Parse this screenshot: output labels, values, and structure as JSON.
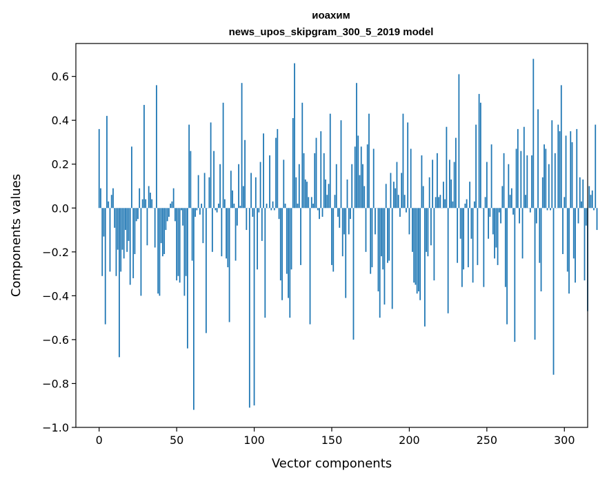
{
  "chart_data": {
    "type": "bar",
    "title": "иоахим",
    "subtitle": "news_upos_skipgram_300_5_2019 model",
    "xlabel": "Vector components",
    "ylabel": "Components values",
    "xlim": [
      -15,
      315
    ],
    "ylim": [
      -1.0,
      0.75
    ],
    "xticks": [
      0,
      50,
      100,
      150,
      200,
      250,
      300
    ],
    "xtick_labels": [
      "0",
      "50",
      "100",
      "150",
      "200",
      "250",
      "300"
    ],
    "yticks": [
      -1.0,
      -0.8,
      -0.6,
      -0.4,
      -0.2,
      0.0,
      0.2,
      0.4,
      0.6
    ],
    "ytick_labels": [
      "−1.0",
      "−0.8",
      "−0.6",
      "−0.4",
      "−0.2",
      "0.0",
      "0.2",
      "0.4",
      "0.6"
    ],
    "grid": false,
    "bar_color": "#1f77b4",
    "values": [
      0.36,
      0.09,
      -0.31,
      -0.13,
      -0.53,
      0.42,
      0.03,
      -0.29,
      0.06,
      0.09,
      -0.09,
      -0.31,
      -0.19,
      -0.68,
      -0.29,
      -0.19,
      -0.23,
      -0.1,
      -0.2,
      -0.15,
      -0.35,
      0.28,
      -0.32,
      -0.21,
      -0.06,
      -0.05,
      0.09,
      -0.4,
      0.04,
      0.47,
      0.04,
      -0.17,
      0.1,
      0.07,
      0.04,
      0.0,
      -0.18,
      0.56,
      -0.39,
      -0.4,
      -0.16,
      -0.22,
      -0.21,
      -0.1,
      -0.06,
      -0.04,
      0.02,
      0.03,
      0.09,
      -0.06,
      -0.33,
      -0.31,
      -0.34,
      -0.01,
      -0.08,
      -0.4,
      -0.31,
      -0.64,
      0.38,
      0.26,
      -0.24,
      -0.92,
      -0.04,
      -0.01,
      0.15,
      -0.03,
      0.02,
      -0.16,
      0.16,
      -0.57,
      0.0,
      0.14,
      0.39,
      -0.2,
      0.26,
      -0.01,
      -0.02,
      0.02,
      0.2,
      -0.22,
      0.48,
      0.04,
      -0.23,
      -0.27,
      -0.52,
      0.17,
      0.08,
      0.02,
      -0.24,
      -0.08,
      0.2,
      0.01,
      0.57,
      0.1,
      0.31,
      -0.1,
      0.0,
      -0.91,
      0.16,
      -0.04,
      -0.9,
      0.14,
      -0.28,
      -0.02,
      0.21,
      -0.15,
      0.34,
      -0.5,
      0.02,
      0.0,
      0.24,
      -0.01,
      0.03,
      -0.01,
      0.32,
      0.36,
      -0.05,
      -0.33,
      -0.42,
      0.22,
      0.02,
      -0.3,
      -0.41,
      -0.5,
      -0.28,
      0.41,
      0.66,
      0.14,
      0.02,
      0.2,
      -0.26,
      0.48,
      0.25,
      0.13,
      0.12,
      0.05,
      -0.53,
      0.05,
      0.02,
      0.25,
      0.32,
      -0.01,
      -0.05,
      0.35,
      -0.04,
      0.25,
      0.13,
      0.06,
      0.11,
      0.43,
      -0.26,
      -0.29,
      0.06,
      0.2,
      -0.04,
      -0.09,
      0.4,
      -0.22,
      -0.12,
      -0.41,
      0.13,
      -0.12,
      -0.05,
      0.2,
      -0.6,
      0.28,
      0.57,
      0.33,
      0.15,
      0.28,
      0.2,
      0.1,
      -0.2,
      0.29,
      0.43,
      -0.3,
      -0.27,
      0.27,
      -0.12,
      0.0,
      -0.38,
      -0.5,
      -0.22,
      -0.28,
      -0.44,
      0.11,
      -0.25,
      -0.24,
      0.16,
      -0.46,
      0.12,
      0.09,
      0.21,
      0.06,
      -0.04,
      0.16,
      0.43,
      0.06,
      -0.02,
      0.39,
      -0.12,
      0.27,
      -0.2,
      -0.34,
      -0.35,
      -0.39,
      -0.38,
      -0.42,
      0.24,
      0.1,
      -0.54,
      -0.2,
      -0.22,
      0.14,
      -0.17,
      0.22,
      -0.33,
      0.05,
      0.25,
      0.05,
      0.06,
      0.0,
      0.12,
      0.04,
      0.37,
      -0.48,
      0.22,
      0.13,
      0.03,
      0.21,
      0.32,
      -0.25,
      0.61,
      -0.14,
      -0.36,
      -0.28,
      0.02,
      0.04,
      -0.27,
      0.12,
      -0.14,
      -0.34,
      0.03,
      0.38,
      -0.26,
      0.52,
      0.48,
      0.0,
      -0.36,
      0.05,
      0.21,
      -0.14,
      -0.04,
      0.29,
      -0.12,
      -0.23,
      -0.18,
      -0.26,
      -0.02,
      -0.07,
      0.1,
      0.25,
      -0.36,
      -0.53,
      0.2,
      0.06,
      0.09,
      -0.03,
      -0.61,
      0.27,
      0.36,
      -0.07,
      0.26,
      -0.23,
      0.37,
      0.06,
      0.24,
      0.0,
      -0.02,
      0.24,
      0.68,
      -0.6,
      -0.07,
      0.45,
      -0.25,
      -0.38,
      0.14,
      0.29,
      0.27,
      -0.01,
      0.2,
      -0.01,
      0.4,
      -0.76,
      0.25,
      0.0,
      0.38,
      0.35,
      0.56,
      -0.21,
      0.05,
      0.33,
      -0.29,
      -0.39,
      0.35,
      0.3,
      -0.23,
      -0.34,
      0.36,
      -0.07,
      0.14,
      0.03,
      0.13,
      -0.33,
      -0.08,
      -0.47,
      0.1,
      0.06,
      0.08,
      -0.01,
      0.38,
      -0.1
    ]
  }
}
